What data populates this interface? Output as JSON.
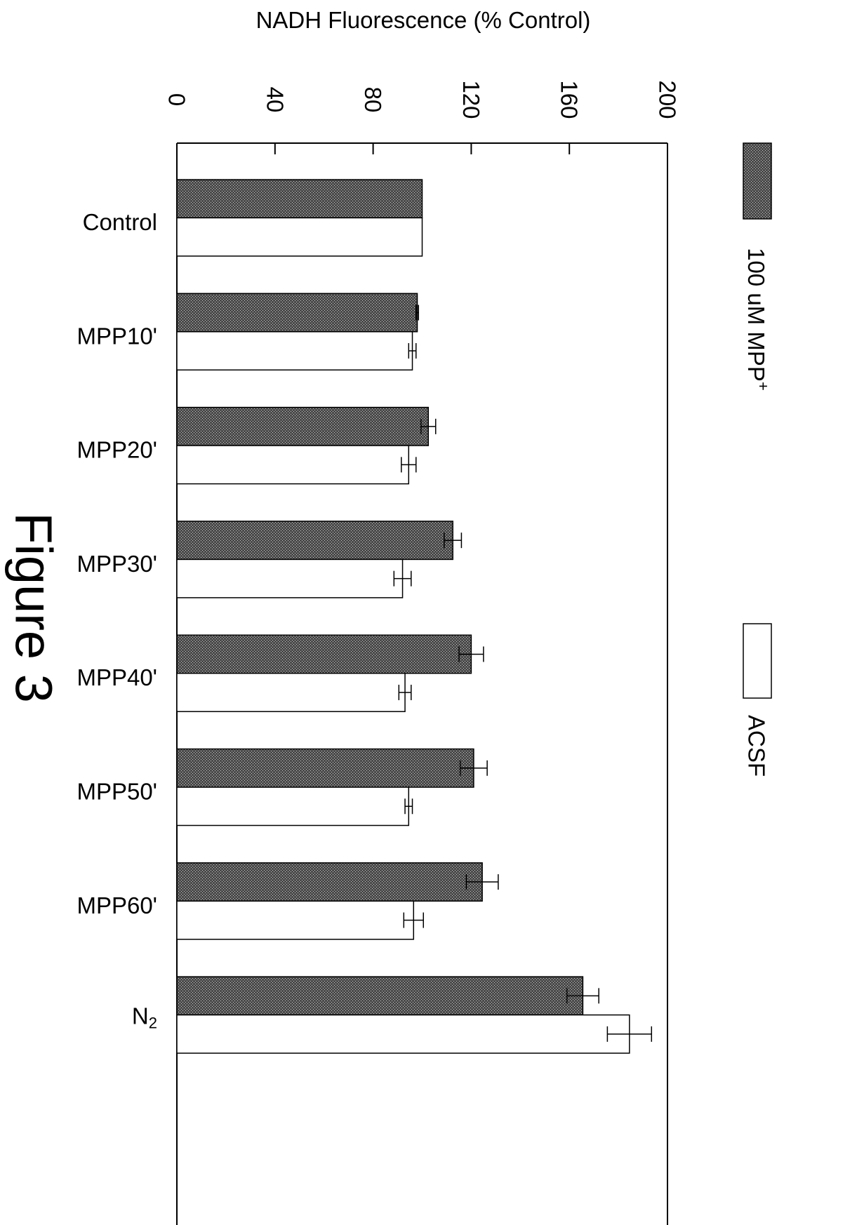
{
  "chart_data": {
    "type": "bar",
    "orientation": "horizontal",
    "title": "",
    "figure_label": "Figure 3",
    "xlabel": "NADH Fluorescence (% Control)",
    "ylabel": "",
    "xlim": [
      0,
      200
    ],
    "ticks": [
      "0",
      "40",
      "80",
      "120",
      "160",
      "200"
    ],
    "tick_values": [
      0,
      40,
      80,
      120,
      160,
      200
    ],
    "categories": [
      "Control",
      "MPP10'",
      "MPP20'",
      "MPP30'",
      "MPP40'",
      "MPP50'",
      "MPP60'",
      "N2"
    ],
    "series": [
      {
        "name": "100 uM MPP+",
        "pattern": "crosshatch-dark",
        "values": [
          100,
          98,
          102.5,
          112.5,
          120,
          121,
          124.5,
          165.5
        ],
        "errors": [
          0,
          0.5,
          3,
          3.5,
          5,
          5.5,
          6.5,
          6.5
        ]
      },
      {
        "name": "ACSF",
        "pattern": "white",
        "values": [
          100,
          96,
          94.5,
          92,
          93,
          94.5,
          96.5,
          184.5
        ],
        "errors": [
          0,
          1.5,
          3,
          3.5,
          2.5,
          1.5,
          4,
          9
        ]
      }
    ],
    "legend_position": "top, rotated",
    "grid": false
  }
}
